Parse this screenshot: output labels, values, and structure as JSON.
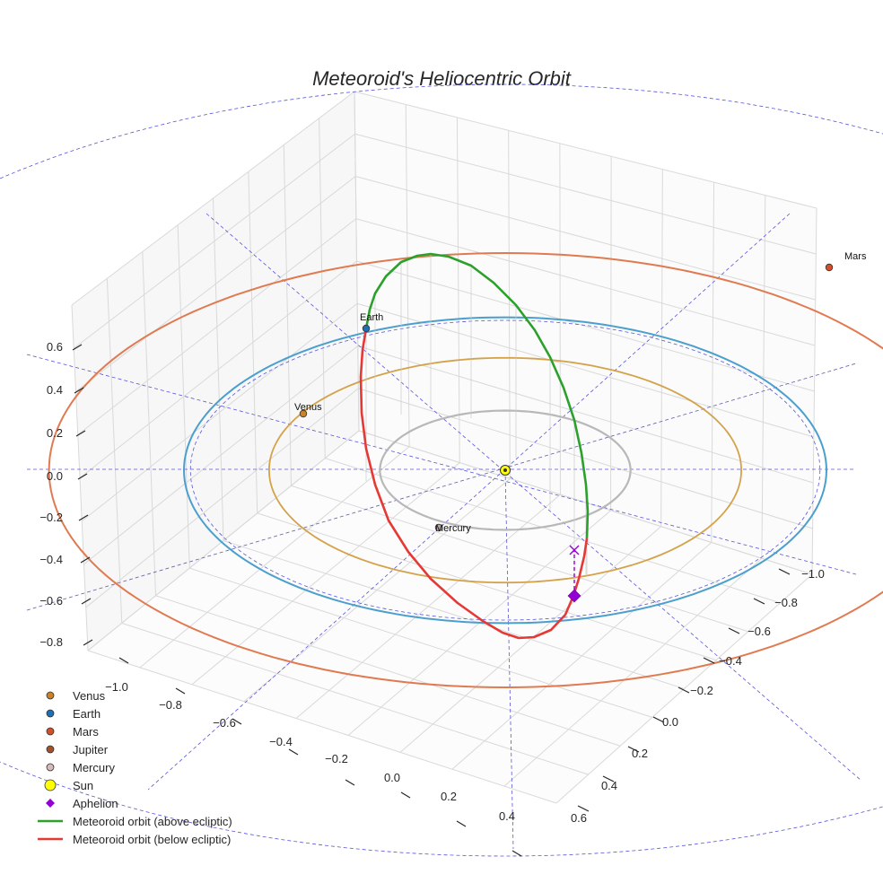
{
  "chart_data": {
    "type": "scatter",
    "projection": "3d",
    "title": "Meteoroid's Heliocentric Orbit",
    "xlabel": "",
    "ylabel": "",
    "zlabel": "",
    "grid": true,
    "legend_position": "bottom-left",
    "x_ticks": [
      "−1.0",
      "−0.8",
      "−0.6",
      "−0.4",
      "−0.2",
      "0.0",
      "0.2",
      "0.4"
    ],
    "y_ticks": [
      "−1.0",
      "−0.8",
      "−0.6",
      "−0.4",
      "−0.2",
      "0.0",
      "0.2",
      "0.4",
      "0.6"
    ],
    "z_ticks": [
      "0.6",
      "0.4",
      "0.2",
      "0.0",
      "−0.2",
      "−0.4",
      "−0.6",
      "−0.8"
    ],
    "bodies": [
      {
        "name": "Venus",
        "label": "Venus",
        "orbit_radius_au": 0.72,
        "color": "#c8822a"
      },
      {
        "name": "Earth",
        "label": "Earth",
        "orbit_radius_au": 1.0,
        "color": "#1f6fb4"
      },
      {
        "name": "Mars",
        "label": "Mars",
        "orbit_radius_au": 1.52,
        "color": "#d3502a"
      },
      {
        "name": "Mercury",
        "label": "Mercury",
        "orbit_radius_au": 0.39,
        "color": "#b8a6a6"
      },
      {
        "name": "Sun",
        "label": "",
        "orbit_radius_au": 0,
        "color": "#ffff00"
      }
    ],
    "orbit_colors": {
      "mercury": "#b8b8b8",
      "venus": "#d4a24a",
      "earth": "#4b9fcd",
      "mars": "#e07a50",
      "meteoroid_above": "#2ca02c",
      "meteoroid_below": "#e53935",
      "guides": "#5555dd",
      "aphelion": "#9400d3"
    },
    "series": [
      {
        "name": "Meteoroid orbit (above ecliptic)",
        "color": "#2ca02c"
      },
      {
        "name": "Meteoroid orbit (below ecliptic)",
        "color": "#e53935"
      }
    ],
    "legend": [
      {
        "label": "Venus",
        "marker": "circle",
        "color": "#c8822a"
      },
      {
        "label": "Earth",
        "marker": "circle",
        "color": "#1f6fb4"
      },
      {
        "label": "Mars",
        "marker": "circle",
        "color": "#d3502a"
      },
      {
        "label": "Jupiter",
        "marker": "circle",
        "color": "#a0522d"
      },
      {
        "label": "Mercury",
        "marker": "circle",
        "color": "#d8b8b8"
      },
      {
        "label": "Sun",
        "marker": "circle-large",
        "color": "#ffff00"
      },
      {
        "label": "Aphelion",
        "marker": "diamond",
        "color": "#9400d3"
      },
      {
        "label": "Meteoroid orbit (above ecliptic)",
        "marker": "line",
        "color": "#2ca02c"
      },
      {
        "label": "Meteoroid orbit (below ecliptic)",
        "marker": "line",
        "color": "#e53935"
      }
    ]
  }
}
